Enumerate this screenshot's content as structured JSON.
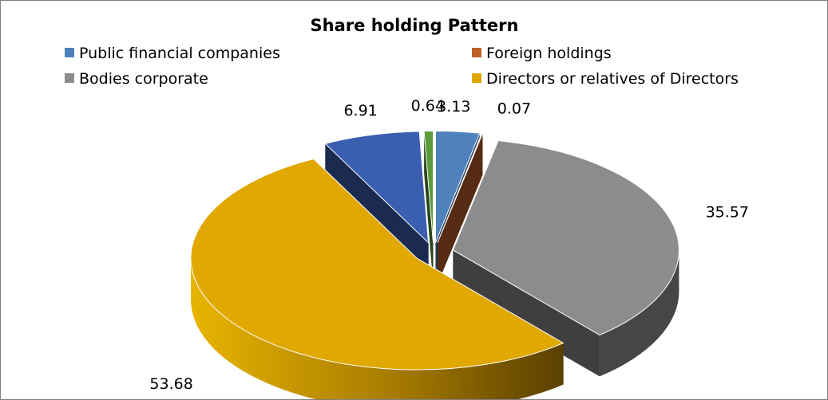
{
  "chart_data": {
    "type": "pie",
    "title": "Share holding  Pattern",
    "legend_position": "top",
    "series": [
      {
        "slices": [
          {
            "name": "Public financial companies",
            "value": 3.13,
            "label": "3.13",
            "color": "#4f81bd",
            "legend": true
          },
          {
            "name": "Foreign holdings",
            "value": 0.07,
            "label": "0.07",
            "color": "#c0602a",
            "legend": true
          },
          {
            "name": "Bodies corporate",
            "value": 35.57,
            "label": "35.57",
            "color": "#8c8c8c",
            "legend": true
          },
          {
            "name": "Directors or relatives of Directors",
            "value": 53.68,
            "label": "53.68",
            "color": "#e0a800",
            "legend": true
          },
          {
            "name": "",
            "value": 6.91,
            "label": "6.91",
            "color": "#3a5fb0",
            "legend": false
          },
          {
            "name": "",
            "value": 0.64,
            "label": "0.64",
            "color": "#5a9a3a",
            "legend": false
          }
        ]
      }
    ]
  }
}
